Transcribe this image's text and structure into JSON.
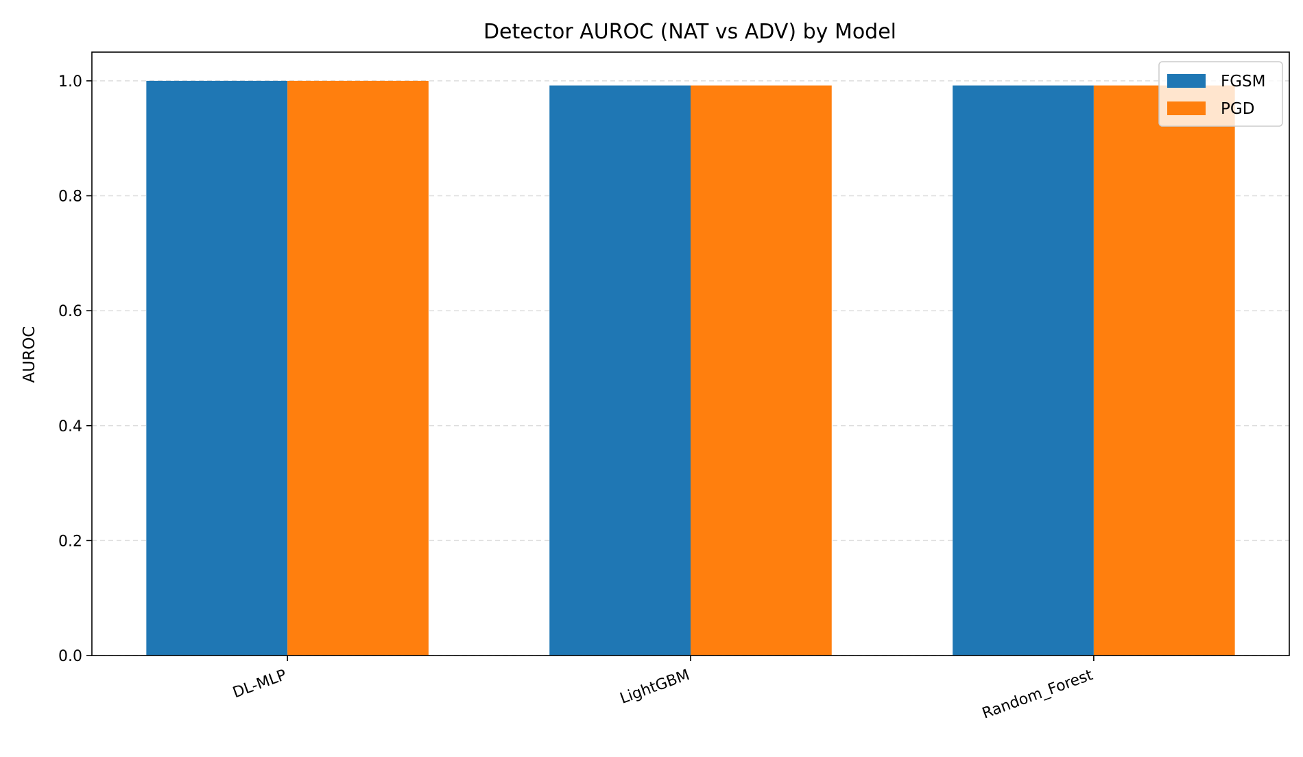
{
  "chart_data": {
    "type": "bar",
    "title": "Detector AUROC (NAT vs ADV) by Model",
    "xlabel": "",
    "ylabel": "AUROC",
    "categories": [
      "DL-MLP",
      "LightGBM",
      "Random_Forest"
    ],
    "series": [
      {
        "name": "FGSM",
        "color": "#1f77b4",
        "values": [
          1.0,
          0.992,
          0.992
        ]
      },
      {
        "name": "PGD",
        "color": "#ff7f0e",
        "values": [
          1.0,
          0.992,
          0.992
        ]
      }
    ],
    "ylim": [
      0,
      1.05
    ],
    "yticks": [
      0.0,
      0.2,
      0.4,
      0.6,
      0.8,
      1.0
    ],
    "ytick_labels": [
      "0.0",
      "0.2",
      "0.4",
      "0.6",
      "0.8",
      "1.0"
    ],
    "grid": "y-dashed",
    "legend_position": "top-right"
  }
}
